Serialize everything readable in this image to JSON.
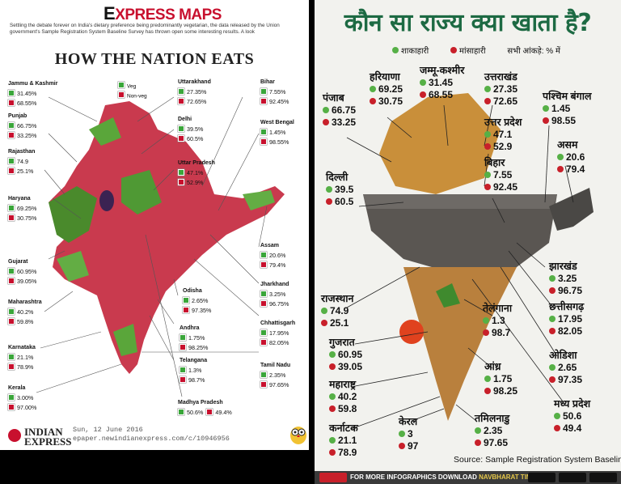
{
  "left": {
    "brand": {
      "e": "E",
      "rest": "XPRESS ",
      "maps": "MAPS"
    },
    "intro": "Settling the debate forever on India's dietary preference being predominantly vegetarian, the data released by the Union government's Sample Registration System Baseline Survey has thrown open some interesting results. A look",
    "title": "HOW THE NATION EATS",
    "legend": {
      "veg": "Veg",
      "nonveg": "Non-veg"
    },
    "states": {
      "jk": {
        "name": "Jammu & Kashmir",
        "veg": "31.45%",
        "nonveg": "68.55%"
      },
      "punjab": {
        "name": "Punjab",
        "veg": "66.75%",
        "nonveg": "33.25%"
      },
      "rajasthan": {
        "name": "Rajasthan",
        "veg": "74.9",
        "nonveg": "25.1%"
      },
      "haryana": {
        "name": "Haryana",
        "veg": "69.25%",
        "nonveg": "30.75%"
      },
      "gujarat": {
        "name": "Gujarat",
        "veg": "60.95%",
        "nonveg": "39.05%"
      },
      "maharashtra": {
        "name": "Maharashtra",
        "veg": "40.2%",
        "nonveg": "59.8%"
      },
      "karnataka": {
        "name": "Karnataka",
        "veg": "21.1%",
        "nonveg": "78.9%"
      },
      "kerala": {
        "name": "Kerala",
        "veg": "3.00%",
        "nonveg": "97.00%"
      },
      "uttarakhand": {
        "name": "Uttarakhand",
        "veg": "27.35%",
        "nonveg": "72.65%"
      },
      "delhi": {
        "name": "Delhi",
        "veg": "39.5%",
        "nonveg": "60.5%"
      },
      "up": {
        "name": "Uttar Pradesh",
        "veg": "47.1%",
        "nonveg": "52.9%"
      },
      "bihar": {
        "name": "Bihar",
        "veg": "7.55%",
        "nonveg": "92.45%"
      },
      "wb": {
        "name": "West Bengal",
        "veg": "1.45%",
        "nonveg": "98.55%"
      },
      "assam": {
        "name": "Assam",
        "veg": "20.6%",
        "nonveg": "79.4%"
      },
      "jharkhand": {
        "name": "Jharkhand",
        "veg": "3.25%",
        "nonveg": "96.75%"
      },
      "chhattisgarh": {
        "name": "Chhattisgarh",
        "veg": "17.95%",
        "nonveg": "82.05%"
      },
      "odisha": {
        "name": "Odisha",
        "veg": "2.65%",
        "nonveg": "97.35%"
      },
      "andhra": {
        "name": "Andhra",
        "veg": "1.75%",
        "nonveg": "98.25%"
      },
      "telangana": {
        "name": "Telangana",
        "veg": "1.3%",
        "nonveg": "98.7%"
      },
      "tn": {
        "name": "Tamil Nadu",
        "veg": "2.35%",
        "nonveg": "97.65%"
      },
      "mp": {
        "name": "Madhya Pradesh",
        "veg": "50.6%",
        "nonveg": "49.4%"
      }
    },
    "footer": {
      "logo_line1": "INDIAN",
      "logo_line2": "EXPRESS",
      "date": "Sun, 12 June 2016",
      "url": "epaper.newindianexpress.com/c/10946956"
    },
    "colors": {
      "veg": "#3aa63a",
      "nonveg": "#c8102e"
    }
  },
  "right": {
    "title": "कौन सा राज्य क्या खाता है?",
    "legend": {
      "veg": "शाकाहारी",
      "nonveg": "मांसाहारी",
      "note": "सभी आंकड़े: % में"
    },
    "states": {
      "punjab": {
        "name": "पंजाब",
        "veg": "66.75",
        "nonveg": "33.25"
      },
      "haryana": {
        "name": "हरियाणा",
        "veg": "69.25",
        "nonveg": "30.75"
      },
      "jk": {
        "name": "जम्मू-कश्मीर",
        "veg": "31.45",
        "nonveg": "68.55"
      },
      "uttarakhand": {
        "name": "उत्तराखंड",
        "veg": "27.35",
        "nonveg": "72.65"
      },
      "wb": {
        "name": "पश्चिम बंगाल",
        "veg": "1.45",
        "nonveg": "98.55"
      },
      "up": {
        "name": "उत्तर प्रदेश",
        "veg": "47.1",
        "nonveg": "52.9"
      },
      "bihar": {
        "name": "बिहार",
        "veg": "7.55",
        "nonveg": "92.45"
      },
      "assam": {
        "name": "असम",
        "veg": "20.6",
        "nonveg": "79.4"
      },
      "delhi": {
        "name": "दिल्ली",
        "veg": "39.5",
        "nonveg": "60.5"
      },
      "jharkhand": {
        "name": "झारखंड",
        "veg": "3.25",
        "nonveg": "96.75"
      },
      "rajasthan": {
        "name": "राजस्थान",
        "veg": "74.9",
        "nonveg": "25.1"
      },
      "chhattisgarh": {
        "name": "छत्तीसगढ़",
        "veg": "17.95",
        "nonveg": "82.05"
      },
      "telangana": {
        "name": "तेलंगाना",
        "veg": "1.3",
        "nonveg": "98.7"
      },
      "gujarat": {
        "name": "गुजरात",
        "veg": "60.95",
        "nonveg": "39.05"
      },
      "odisha": {
        "name": "ओडिशा",
        "veg": "2.65",
        "nonveg": "97.35"
      },
      "andhra": {
        "name": "आंध्र",
        "veg": "1.75",
        "nonveg": "98.25"
      },
      "maharashtra": {
        "name": "महाराष्ट्र",
        "veg": "40.2",
        "nonveg": "59.8"
      },
      "mp": {
        "name": "मध्य प्रदेश",
        "veg": "50.6",
        "nonveg": "49.4"
      },
      "karnataka": {
        "name": "कर्नाटक",
        "veg": "21.1",
        "nonveg": "78.9"
      },
      "kerala": {
        "name": "केरल",
        "veg": "3",
        "nonveg": "97"
      },
      "tn": {
        "name": "तमिलनाडु",
        "veg": "2.35",
        "nonveg": "97.65"
      }
    },
    "source": "Source: Sample Registration System Baseline Survey",
    "footer": {
      "prefix": "FOR MORE INFOGRAPHICS DOWNLOAD ",
      "app": "NAVBHARAT TIMES APP"
    },
    "colors": {
      "title": "#1d6a43",
      "veg": "#56b046",
      "nonveg": "#c8202a"
    }
  }
}
